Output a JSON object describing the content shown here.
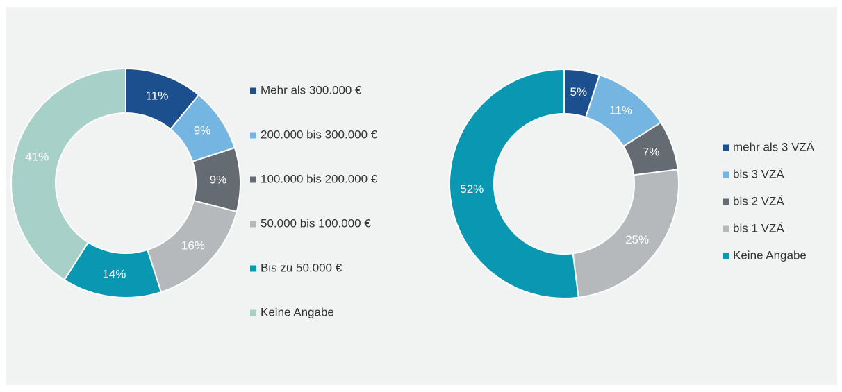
{
  "chart_data": [
    {
      "type": "donut",
      "categories": [
        "Mehr als 300.000 €",
        "200.000 bis 300.000 €",
        "100.000 bis 200.000 €",
        "50.000 bis 100.000 €",
        "Bis zu 50.000 €",
        "Keine Angabe"
      ],
      "values": [
        11,
        9,
        9,
        16,
        14,
        41
      ],
      "value_labels": [
        "11%",
        "9%",
        "9%",
        "16%",
        "14%",
        "41%"
      ],
      "colors": [
        "#1b4f8e",
        "#74b6e1",
        "#656b73",
        "#b5b9bb",
        "#0a97b1",
        "#a7d0c8"
      ]
    },
    {
      "type": "donut",
      "categories": [
        "mehr als 3 VZÄ",
        "bis 3 VZÄ",
        "bis 2 VZÄ",
        "bis 1 VZÄ",
        "Keine Angabe"
      ],
      "values": [
        5,
        11,
        7,
        25,
        52
      ],
      "value_labels": [
        "5%",
        "11%",
        "7%",
        "25%",
        "52%"
      ],
      "colors": [
        "#1b4f8e",
        "#74b6e1",
        "#656b73",
        "#b5b9bb",
        "#0a97b1"
      ]
    }
  ]
}
